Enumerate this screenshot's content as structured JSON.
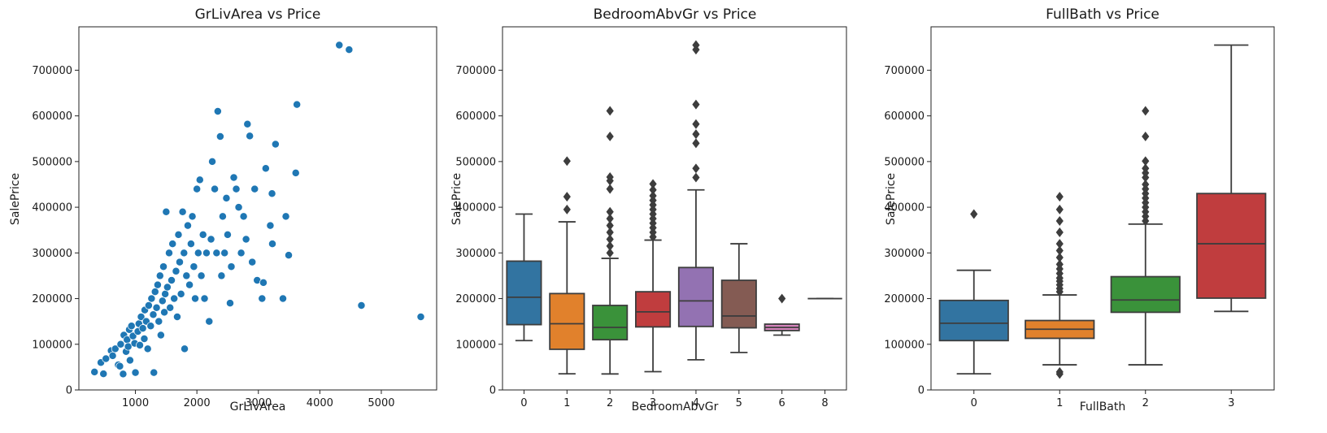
{
  "chart_data": [
    {
      "type": "scatter",
      "title": "GrLivArea vs Price",
      "xlabel": "GrLivArea",
      "ylabel": "SalePrice",
      "xlim": [
        80,
        5900
      ],
      "ylim": [
        0,
        795000
      ],
      "xticks": [
        1000,
        2000,
        3000,
        4000,
        5000
      ],
      "yticks": [
        0,
        100000,
        200000,
        300000,
        400000,
        500000,
        600000,
        700000
      ],
      "color": "#1f77b4",
      "points": [
        [
          334,
          39300
        ],
        [
          438,
          60000
        ],
        [
          480,
          35300
        ],
        [
          520,
          68400
        ],
        [
          605,
          86000
        ],
        [
          630,
          75000
        ],
        [
          672,
          90000
        ],
        [
          720,
          55000
        ],
        [
          747,
          52000
        ],
        [
          760,
          100000
        ],
        [
          800,
          35000
        ],
        [
          812,
          120000
        ],
        [
          848,
          84000
        ],
        [
          864,
          110000
        ],
        [
          882,
          95000
        ],
        [
          900,
          132000
        ],
        [
          912,
          65000
        ],
        [
          936,
          140000
        ],
        [
          960,
          118000
        ],
        [
          987,
          102000
        ],
        [
          1000,
          38000
        ],
        [
          1040,
          128000
        ],
        [
          1056,
          145000
        ],
        [
          1072,
          98000
        ],
        [
          1092,
          160000
        ],
        [
          1120,
          135000
        ],
        [
          1144,
          112000
        ],
        [
          1152,
          175000
        ],
        [
          1176,
          150000
        ],
        [
          1200,
          90000
        ],
        [
          1216,
          185000
        ],
        [
          1248,
          140000
        ],
        [
          1262,
          200000
        ],
        [
          1290,
          165000
        ],
        [
          1300,
          38000
        ],
        [
          1320,
          215000
        ],
        [
          1344,
          180000
        ],
        [
          1362,
          230000
        ],
        [
          1380,
          150000
        ],
        [
          1400,
          250000
        ],
        [
          1414,
          120000
        ],
        [
          1440,
          195000
        ],
        [
          1456,
          270000
        ],
        [
          1470,
          170000
        ],
        [
          1484,
          210000
        ],
        [
          1500,
          390000
        ],
        [
          1520,
          225000
        ],
        [
          1548,
          300000
        ],
        [
          1564,
          180000
        ],
        [
          1588,
          240000
        ],
        [
          1604,
          320000
        ],
        [
          1630,
          200000
        ],
        [
          1660,
          260000
        ],
        [
          1680,
          160000
        ],
        [
          1700,
          340000
        ],
        [
          1720,
          280000
        ],
        [
          1742,
          210000
        ],
        [
          1768,
          390000
        ],
        [
          1790,
          300000
        ],
        [
          1800,
          90000
        ],
        [
          1830,
          250000
        ],
        [
          1852,
          360000
        ],
        [
          1880,
          230000
        ],
        [
          1904,
          320000
        ],
        [
          1926,
          380000
        ],
        [
          1950,
          270000
        ],
        [
          1972,
          200000
        ],
        [
          2000,
          440000
        ],
        [
          2022,
          300000
        ],
        [
          2048,
          460000
        ],
        [
          2072,
          250000
        ],
        [
          2100,
          340000
        ],
        [
          2124,
          200000
        ],
        [
          2156,
          300000
        ],
        [
          2200,
          150000
        ],
        [
          2230,
          330000
        ],
        [
          2250,
          500000
        ],
        [
          2290,
          440000
        ],
        [
          2320,
          300000
        ],
        [
          2340,
          610000
        ],
        [
          2380,
          555000
        ],
        [
          2400,
          250000
        ],
        [
          2420,
          380000
        ],
        [
          2450,
          300000
        ],
        [
          2480,
          420000
        ],
        [
          2500,
          340000
        ],
        [
          2540,
          190000
        ],
        [
          2560,
          270000
        ],
        [
          2600,
          465000
        ],
        [
          2640,
          440000
        ],
        [
          2680,
          400000
        ],
        [
          2720,
          300000
        ],
        [
          2760,
          380000
        ],
        [
          2800,
          330000
        ],
        [
          2822,
          582000
        ],
        [
          2860,
          556000
        ],
        [
          2900,
          280000
        ],
        [
          2940,
          440000
        ],
        [
          2980,
          240000
        ],
        [
          3060,
          200000
        ],
        [
          3082,
          235000
        ],
        [
          3120,
          485000
        ],
        [
          3194,
          360000
        ],
        [
          3222,
          430000
        ],
        [
          3228,
          320000
        ],
        [
          3279,
          538000
        ],
        [
          3400,
          200000
        ],
        [
          3447,
          380000
        ],
        [
          3493,
          295000
        ],
        [
          3608,
          475000
        ],
        [
          3627,
          625000
        ],
        [
          4316,
          755000
        ],
        [
          4476,
          745000
        ],
        [
          4676,
          185000
        ],
        [
          5642,
          160000
        ]
      ]
    },
    {
      "type": "box",
      "title": "BedroomAbvGr vs Price",
      "xlabel": "BedroomAbvGr",
      "ylabel": "SalePrice",
      "ylim": [
        0,
        795000
      ],
      "yticks": [
        0,
        100000,
        200000,
        300000,
        400000,
        500000,
        600000,
        700000
      ],
      "categories": [
        "0",
        "1",
        "2",
        "3",
        "4",
        "5",
        "6",
        "8"
      ],
      "boxes": [
        {
          "q1": 143000,
          "median": 203000,
          "q3": 282000,
          "whislo": 108000,
          "whishi": 385000,
          "fliers": [],
          "color": "#3274a1"
        },
        {
          "q1": 89000,
          "median": 145000,
          "q3": 211000,
          "whislo": 35300,
          "whishi": 368000,
          "fliers": [
            395000,
            423000,
            501000
          ],
          "color": "#e1812c"
        },
        {
          "q1": 110000,
          "median": 137000,
          "q3": 185000,
          "whislo": 35000,
          "whishi": 288000,
          "fliers": [
            300000,
            315000,
            330000,
            345000,
            360000,
            375000,
            390000,
            440000,
            458000,
            466000,
            555000,
            611000
          ],
          "color": "#3a923a"
        },
        {
          "q1": 138000,
          "median": 171000,
          "q3": 215000,
          "whislo": 40000,
          "whishi": 328000,
          "fliers": [
            335000,
            345000,
            355000,
            365000,
            375000,
            385000,
            395000,
            405000,
            415000,
            425000,
            438000,
            451000
          ],
          "color": "#c03d3e"
        },
        {
          "q1": 139000,
          "median": 195000,
          "q3": 268000,
          "whislo": 66000,
          "whishi": 438000,
          "fliers": [
            465000,
            485000,
            540000,
            560000,
            582000,
            625000,
            745000,
            755000
          ],
          "color": "#9372b2"
        },
        {
          "q1": 136000,
          "median": 162000,
          "q3": 240000,
          "whislo": 82000,
          "whishi": 320000,
          "fliers": [],
          "color": "#845b53"
        },
        {
          "q1": 130000,
          "median": 137000,
          "q3": 144000,
          "whislo": 120000,
          "whishi": 144000,
          "fliers": [
            200000
          ],
          "color": "#d684bd"
        },
        {
          "q1": 200000,
          "median": 200000,
          "q3": 200000,
          "whislo": 200000,
          "whishi": 200000,
          "fliers": [],
          "color": "#7f7f7f"
        }
      ]
    },
    {
      "type": "box",
      "title": "FullBath vs Price",
      "xlabel": "FullBath",
      "ylabel": "SalePrice",
      "ylim": [
        0,
        795000
      ],
      "yticks": [
        0,
        100000,
        200000,
        300000,
        400000,
        500000,
        600000,
        700000
      ],
      "categories": [
        "0",
        "1",
        "2",
        "3"
      ],
      "boxes": [
        {
          "q1": 108000,
          "median": 146000,
          "q3": 196000,
          "whislo": 35300,
          "whishi": 262000,
          "fliers": [
            385000
          ],
          "color": "#3274a1"
        },
        {
          "q1": 113000,
          "median": 133000,
          "q3": 152000,
          "whislo": 55000,
          "whishi": 208000,
          "fliers": [
            34900,
            39300,
            215000,
            222000,
            230000,
            238000,
            245000,
            255000,
            265000,
            275000,
            290000,
            305000,
            320000,
            345000,
            370000,
            395000,
            423000
          ],
          "color": "#e1812c"
        },
        {
          "q1": 170000,
          "median": 197000,
          "q3": 248000,
          "whislo": 55000,
          "whishi": 363000,
          "fliers": [
            370000,
            380000,
            390000,
            400000,
            410000,
            420000,
            430000,
            440000,
            450000,
            465000,
            475000,
            485000,
            501000,
            555000,
            611000
          ],
          "color": "#3a923a"
        },
        {
          "q1": 201000,
          "median": 320000,
          "q3": 430000,
          "whislo": 172000,
          "whishi": 755000,
          "fliers": [],
          "color": "#c03d3e"
        }
      ]
    }
  ]
}
